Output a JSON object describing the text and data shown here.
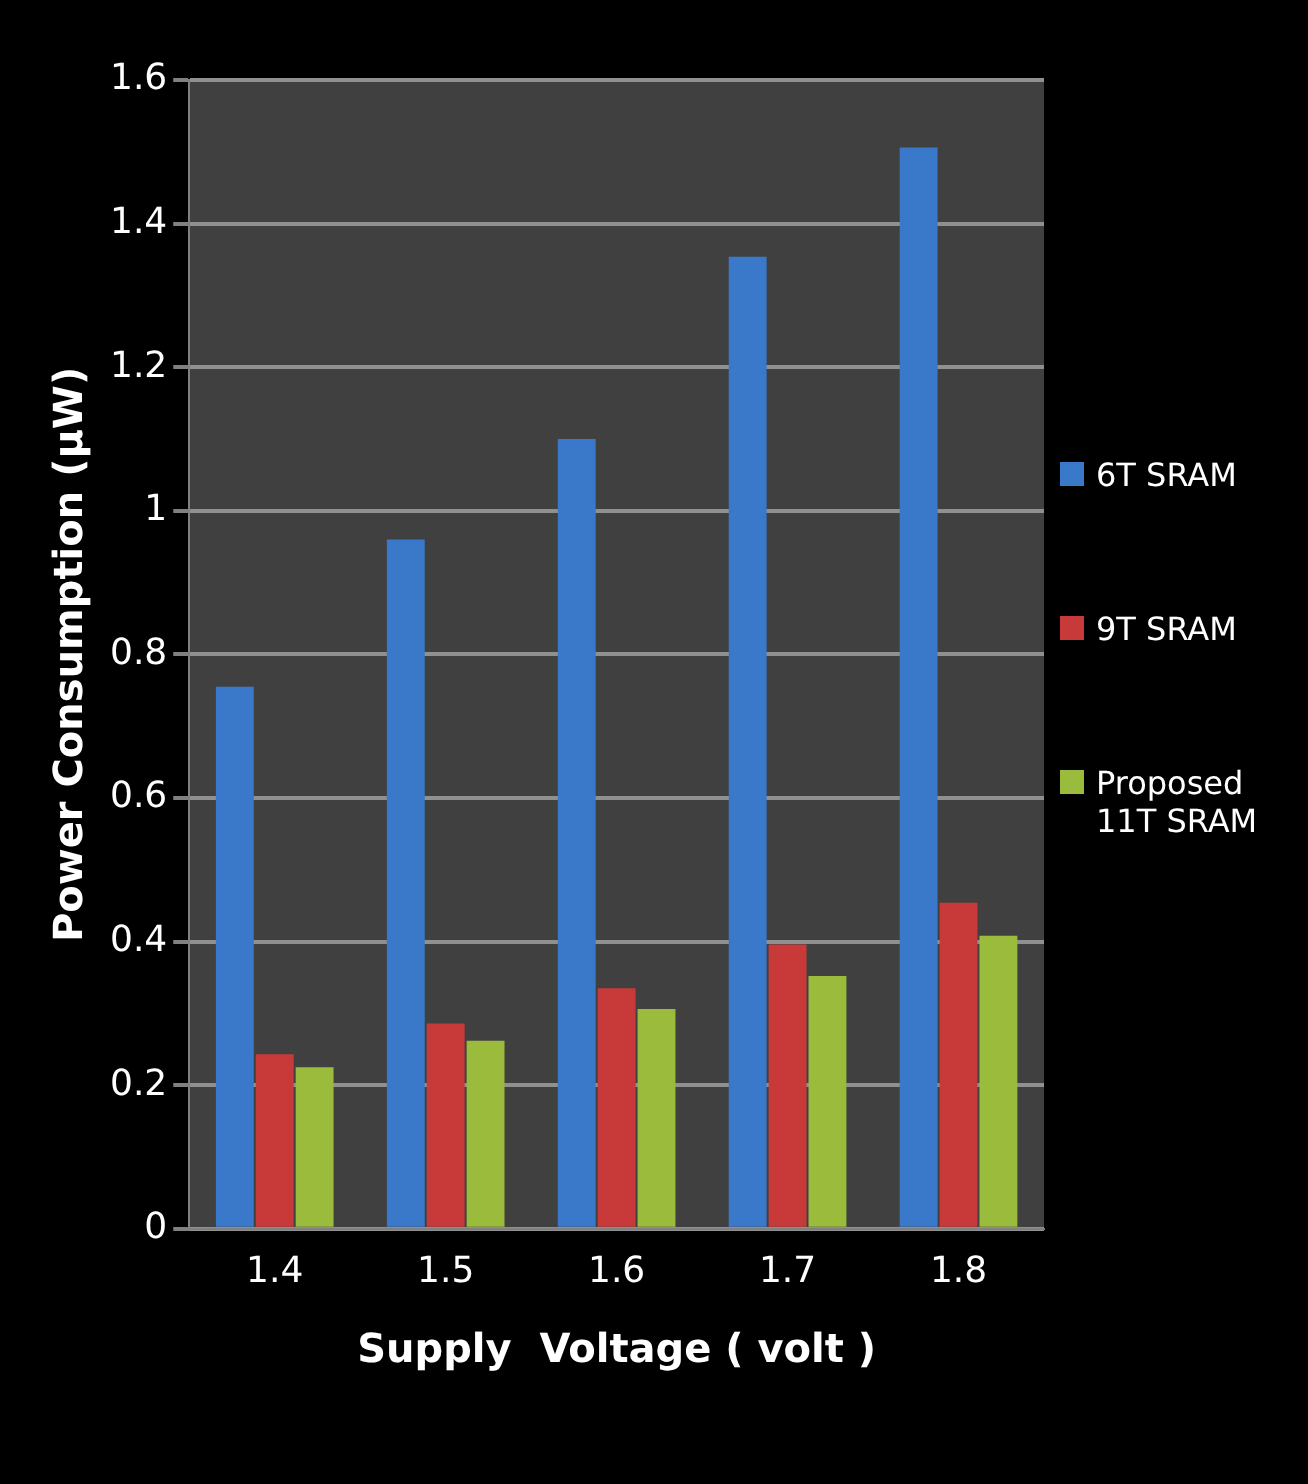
{
  "chart_data": {
    "type": "bar",
    "xlabel": "Supply  Voltage ( volt )",
    "ylabel": "Power Consumption (µW)",
    "categories": [
      "1.4",
      "1.5",
      "1.6",
      "1.7",
      "1.8"
    ],
    "series": [
      {
        "name": "6T SRAM",
        "color": "#3a78c9",
        "values": [
          0.755,
          0.96,
          1.1,
          1.354,
          1.506
        ]
      },
      {
        "name": "9T SRAM",
        "color": "#c83a3a",
        "values": [
          0.243,
          0.286,
          0.335,
          0.396,
          0.454
        ]
      },
      {
        "name": "Proposed 11T SRAM",
        "color": "#9abb3c",
        "values": [
          0.225,
          0.262,
          0.306,
          0.352,
          0.408
        ]
      }
    ],
    "ylim": [
      0,
      1.6
    ],
    "yticks": [
      0,
      0.2,
      0.4,
      0.6,
      0.8,
      1,
      1.2,
      1.4,
      1.6
    ],
    "grid": "y",
    "legend": "right"
  }
}
